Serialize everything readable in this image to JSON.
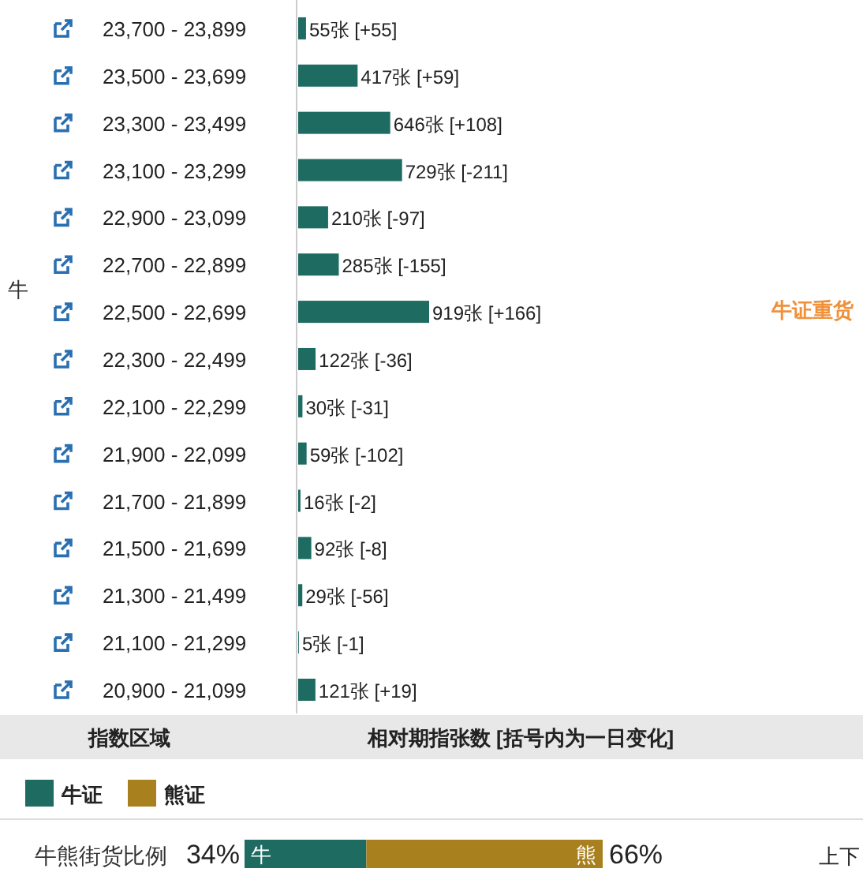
{
  "chart_data": [
    {
      "type": "bar",
      "orientation": "horizontal",
      "ylabel": "牛",
      "xlabel": "相对期指张数 [括号内为一日变化]",
      "categories": [
        "23,700 - 23,899",
        "23,500 - 23,699",
        "23,300 - 23,499",
        "23,100 - 23,299",
        "22,900 - 23,099",
        "22,700 - 22,899",
        "22,500 - 22,699",
        "22,300 - 22,499",
        "22,100 - 22,299",
        "21,900 - 22,099",
        "21,700 - 21,899",
        "21,500 - 21,699",
        "21,300 - 21,499",
        "21,100 - 21,299",
        "20,900 - 21,099"
      ],
      "values": [
        55,
        417,
        646,
        729,
        210,
        285,
        919,
        122,
        30,
        59,
        16,
        92,
        29,
        5,
        121
      ],
      "color": "#1e6b62",
      "value_labels": [
        "55张 [+55]",
        "417张 [+59]",
        "646张 [+108]",
        "729张 [-211]",
        "210张 [-97]",
        "285张 [-155]",
        "919张 [+166]",
        "122张 [-36]",
        "30张 [-31]",
        "59张 [-102]",
        "16张 [-2]",
        "92张 [-8]",
        "29张 [-56]",
        "5张 [-1]",
        "121张 [+19]"
      ],
      "annotations": [
        "指数区域",
        "牛证重货"
      ]
    },
    {
      "type": "bar",
      "orientation": "horizontal",
      "stacked": true,
      "title": "牛熊街货比例",
      "categories": [
        null
      ],
      "legend": "top left",
      "tick_labels": false,
      "xlim": [
        0,
        100
      ],
      "series": [
        {
          "name": "牛证",
          "color": "#1e6b62",
          "values": [
            34
          ],
          "value_labels": [
            "34%"
          ]
        },
        {
          "name": "熊证",
          "color": "#a8801e",
          "values": [
            66
          ],
          "value_labels": [
            "66%"
          ]
        }
      ],
      "annotations": [
        "牛",
        "熊",
        "上下"
      ]
    }
  ]
}
